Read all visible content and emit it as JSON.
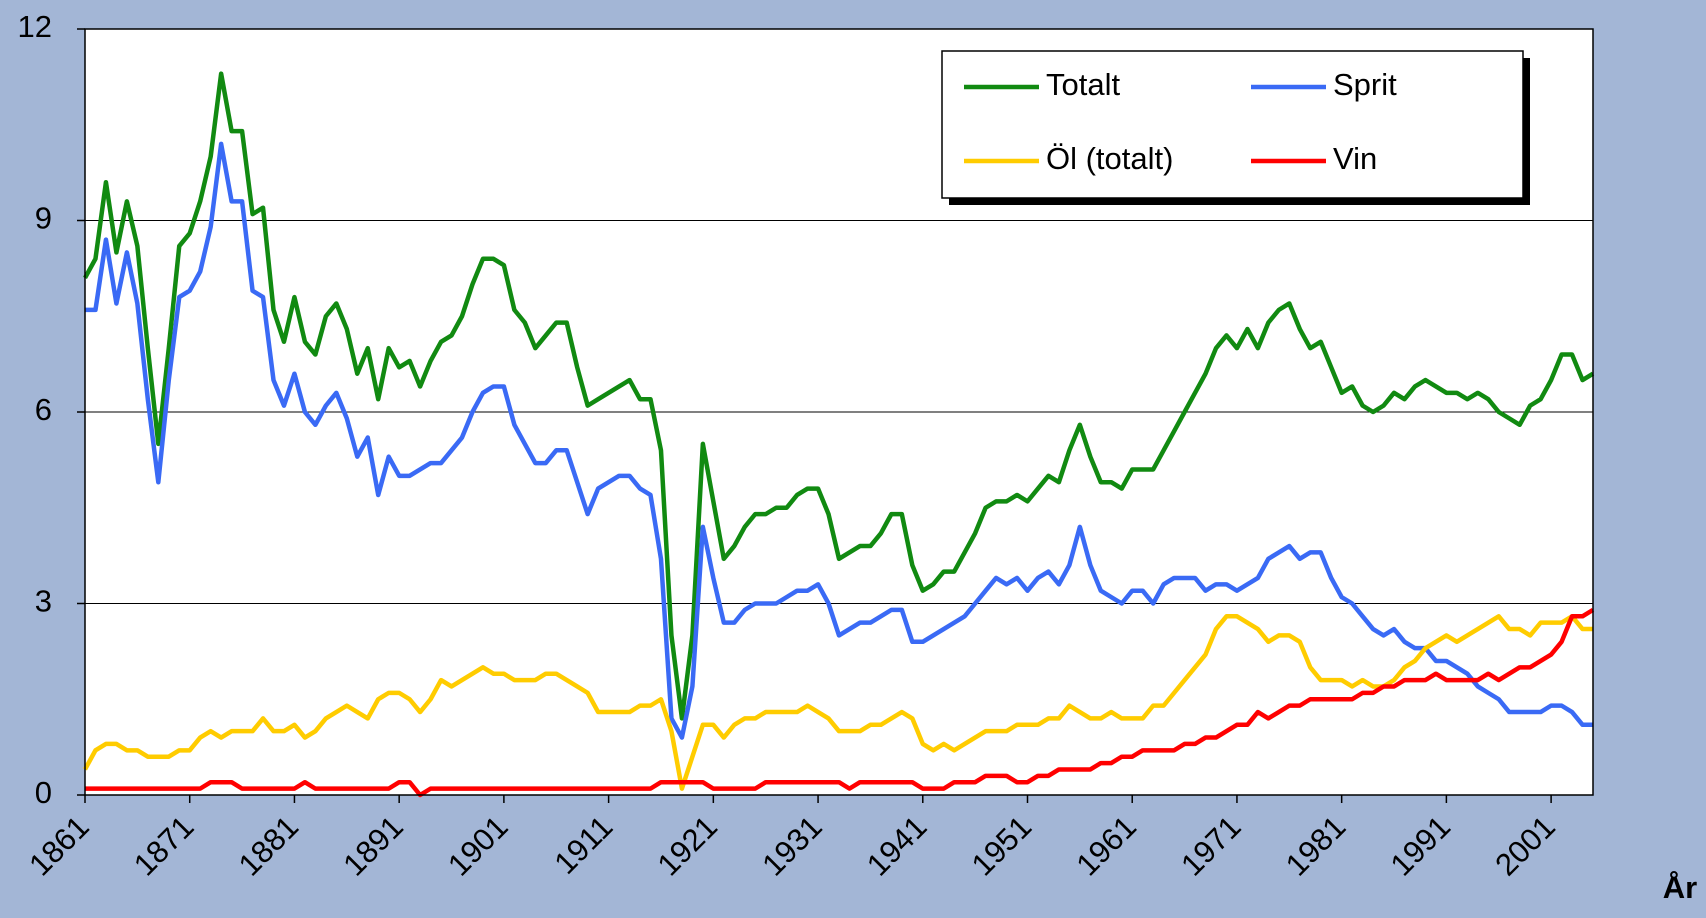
{
  "chart_data": {
    "type": "line",
    "x_label": "År",
    "x": [
      1861,
      1862,
      1863,
      1864,
      1865,
      1866,
      1867,
      1868,
      1869,
      1870,
      1871,
      1872,
      1873,
      1874,
      1875,
      1876,
      1877,
      1878,
      1879,
      1880,
      1881,
      1882,
      1883,
      1884,
      1885,
      1886,
      1887,
      1888,
      1889,
      1890,
      1891,
      1892,
      1893,
      1894,
      1895,
      1896,
      1897,
      1898,
      1899,
      1900,
      1901,
      1902,
      1903,
      1904,
      1905,
      1906,
      1907,
      1908,
      1909,
      1910,
      1911,
      1912,
      1913,
      1914,
      1915,
      1916,
      1917,
      1918,
      1919,
      1920,
      1921,
      1922,
      1923,
      1924,
      1925,
      1926,
      1927,
      1928,
      1929,
      1930,
      1931,
      1932,
      1933,
      1934,
      1935,
      1936,
      1937,
      1938,
      1939,
      1940,
      1941,
      1942,
      1943,
      1944,
      1945,
      1946,
      1947,
      1948,
      1949,
      1950,
      1951,
      1952,
      1953,
      1954,
      1955,
      1956,
      1957,
      1958,
      1959,
      1960,
      1961,
      1962,
      1963,
      1964,
      1965,
      1966,
      1967,
      1968,
      1969,
      1970,
      1971,
      1972,
      1973,
      1974,
      1975,
      1976,
      1977,
      1978,
      1979,
      1980,
      1981,
      1982,
      1983,
      1984,
      1985,
      1986,
      1987,
      1988,
      1989,
      1990,
      1991,
      1992,
      1993,
      1994,
      1995,
      1996,
      1997,
      1998,
      1999,
      2000,
      2001,
      2002,
      2003,
      2004,
      2005
    ],
    "series": [
      {
        "name": "Totalt",
        "color": "#118a11",
        "values": [
          8.1,
          8.4,
          9.6,
          8.5,
          9.3,
          8.6,
          7.0,
          5.5,
          7.0,
          8.6,
          8.8,
          9.3,
          10.0,
          11.3,
          10.4,
          10.4,
          9.1,
          9.2,
          7.6,
          7.1,
          7.8,
          7.1,
          6.9,
          7.5,
          7.7,
          7.3,
          6.6,
          7.0,
          6.2,
          7.0,
          6.7,
          6.8,
          6.4,
          6.8,
          7.1,
          7.2,
          7.5,
          8.0,
          8.4,
          8.4,
          8.3,
          7.6,
          7.4,
          7.0,
          7.2,
          7.4,
          7.4,
          6.7,
          6.1,
          6.2,
          6.3,
          6.4,
          6.5,
          6.2,
          6.2,
          5.4,
          2.5,
          1.2,
          2.5,
          5.5,
          4.6,
          3.7,
          3.9,
          4.2,
          4.4,
          4.4,
          4.5,
          4.5,
          4.7,
          4.8,
          4.8,
          4.4,
          3.7,
          3.8,
          3.9,
          3.9,
          4.1,
          4.4,
          4.4,
          3.6,
          3.2,
          3.3,
          3.5,
          3.5,
          3.8,
          4.1,
          4.5,
          4.6,
          4.6,
          4.7,
          4.6,
          4.8,
          5.0,
          4.9,
          5.4,
          5.8,
          5.3,
          4.9,
          4.9,
          4.8,
          5.1,
          5.1,
          5.1,
          5.4,
          5.7,
          6.0,
          6.3,
          6.6,
          7.0,
          7.2,
          7.0,
          7.3,
          7.0,
          7.4,
          7.6,
          7.7,
          7.3,
          7.0,
          7.1,
          6.7,
          6.3,
          6.4,
          6.1,
          6.0,
          6.1,
          6.3,
          6.2,
          6.4,
          6.5,
          6.4,
          6.3,
          6.3,
          6.2,
          6.3,
          6.2,
          6.0,
          5.9,
          5.8,
          6.1,
          6.2,
          6.5,
          6.9,
          6.9,
          6.5,
          6.6
        ]
      },
      {
        "name": "Sprit",
        "color": "#3a6af5",
        "values": [
          7.6,
          7.6,
          8.7,
          7.7,
          8.5,
          7.7,
          6.2,
          4.9,
          6.5,
          7.8,
          7.9,
          8.2,
          8.9,
          10.2,
          9.3,
          9.3,
          7.9,
          7.8,
          6.5,
          6.1,
          6.6,
          6.0,
          5.8,
          6.1,
          6.3,
          5.9,
          5.3,
          5.6,
          4.7,
          5.3,
          5.0,
          5.0,
          5.1,
          5.2,
          5.2,
          5.4,
          5.6,
          6.0,
          6.3,
          6.4,
          6.4,
          5.8,
          5.5,
          5.2,
          5.2,
          5.4,
          5.4,
          4.9,
          4.4,
          4.8,
          4.9,
          5.0,
          5.0,
          4.8,
          4.7,
          3.7,
          1.2,
          0.9,
          1.7,
          4.2,
          3.4,
          2.7,
          2.7,
          2.9,
          3.0,
          3.0,
          3.0,
          3.1,
          3.2,
          3.2,
          3.3,
          3.0,
          2.5,
          2.6,
          2.7,
          2.7,
          2.8,
          2.9,
          2.9,
          2.4,
          2.4,
          2.5,
          2.6,
          2.7,
          2.8,
          3.0,
          3.2,
          3.4,
          3.3,
          3.4,
          3.2,
          3.4,
          3.5,
          3.3,
          3.6,
          4.2,
          3.6,
          3.2,
          3.1,
          3.0,
          3.2,
          3.2,
          3.0,
          3.3,
          3.4,
          3.4,
          3.4,
          3.2,
          3.3,
          3.3,
          3.2,
          3.3,
          3.4,
          3.7,
          3.8,
          3.9,
          3.7,
          3.8,
          3.8,
          3.4,
          3.1,
          3.0,
          2.8,
          2.6,
          2.5,
          2.6,
          2.4,
          2.3,
          2.3,
          2.1,
          2.1,
          2.0,
          1.9,
          1.7,
          1.6,
          1.5,
          1.3,
          1.3,
          1.3,
          1.3,
          1.4,
          1.4,
          1.3,
          1.1,
          1.1
        ]
      },
      {
        "name": "Öl (totalt)",
        "color": "#ffcc00",
        "values": [
          0.4,
          0.7,
          0.8,
          0.8,
          0.7,
          0.7,
          0.6,
          0.6,
          0.6,
          0.7,
          0.7,
          0.9,
          1.0,
          0.9,
          1.0,
          1.0,
          1.0,
          1.2,
          1.0,
          1.0,
          1.1,
          0.9,
          1.0,
          1.2,
          1.3,
          1.4,
          1.3,
          1.2,
          1.5,
          1.6,
          1.6,
          1.5,
          1.3,
          1.5,
          1.8,
          1.7,
          1.8,
          1.9,
          2.0,
          1.9,
          1.9,
          1.8,
          1.8,
          1.8,
          1.9,
          1.9,
          1.8,
          1.7,
          1.6,
          1.3,
          1.3,
          1.3,
          1.3,
          1.4,
          1.4,
          1.5,
          1.0,
          0.1,
          0.6,
          1.1,
          1.1,
          0.9,
          1.1,
          1.2,
          1.2,
          1.3,
          1.3,
          1.3,
          1.3,
          1.4,
          1.3,
          1.2,
          1.0,
          1.0,
          1.0,
          1.1,
          1.1,
          1.2,
          1.3,
          1.2,
          0.8,
          0.7,
          0.8,
          0.7,
          0.8,
          0.9,
          1.0,
          1.0,
          1.0,
          1.1,
          1.1,
          1.1,
          1.2,
          1.2,
          1.4,
          1.3,
          1.2,
          1.2,
          1.3,
          1.2,
          1.2,
          1.2,
          1.4,
          1.4,
          1.6,
          1.8,
          2.0,
          2.2,
          2.6,
          2.8,
          2.8,
          2.7,
          2.6,
          2.4,
          2.5,
          2.5,
          2.4,
          2.0,
          1.8,
          1.8,
          1.8,
          1.7,
          1.8,
          1.7,
          1.7,
          1.8,
          2.0,
          2.1,
          2.3,
          2.4,
          2.5,
          2.4,
          2.5,
          2.6,
          2.7,
          2.8,
          2.6,
          2.6,
          2.5,
          2.7,
          2.7,
          2.7,
          2.8,
          2.6,
          2.6
        ]
      },
      {
        "name": "Vin",
        "color": "#ff0000",
        "values": [
          0.1,
          0.1,
          0.1,
          0.1,
          0.1,
          0.1,
          0.1,
          0.1,
          0.1,
          0.1,
          0.1,
          0.1,
          0.2,
          0.2,
          0.2,
          0.1,
          0.1,
          0.1,
          0.1,
          0.1,
          0.1,
          0.2,
          0.1,
          0.1,
          0.1,
          0.1,
          0.1,
          0.1,
          0.1,
          0.1,
          0.2,
          0.2,
          0.0,
          0.1,
          0.1,
          0.1,
          0.1,
          0.1,
          0.1,
          0.1,
          0.1,
          0.1,
          0.1,
          0.1,
          0.1,
          0.1,
          0.1,
          0.1,
          0.1,
          0.1,
          0.1,
          0.1,
          0.1,
          0.1,
          0.1,
          0.2,
          0.2,
          0.2,
          0.2,
          0.2,
          0.1,
          0.1,
          0.1,
          0.1,
          0.1,
          0.2,
          0.2,
          0.2,
          0.2,
          0.2,
          0.2,
          0.2,
          0.2,
          0.1,
          0.2,
          0.2,
          0.2,
          0.2,
          0.2,
          0.2,
          0.1,
          0.1,
          0.1,
          0.2,
          0.2,
          0.2,
          0.3,
          0.3,
          0.3,
          0.2,
          0.2,
          0.3,
          0.3,
          0.4,
          0.4,
          0.4,
          0.4,
          0.5,
          0.5,
          0.6,
          0.6,
          0.7,
          0.7,
          0.7,
          0.7,
          0.8,
          0.8,
          0.9,
          0.9,
          1.0,
          1.1,
          1.1,
          1.3,
          1.2,
          1.3,
          1.4,
          1.4,
          1.5,
          1.5,
          1.5,
          1.5,
          1.5,
          1.6,
          1.6,
          1.7,
          1.7,
          1.8,
          1.8,
          1.8,
          1.9,
          1.8,
          1.8,
          1.8,
          1.8,
          1.9,
          1.8,
          1.9,
          2.0,
          2.0,
          2.1,
          2.2,
          2.4,
          2.8,
          2.8,
          2.9
        ]
      }
    ],
    "xlim": [
      1861,
      2005
    ],
    "xticks": [
      1861,
      1871,
      1881,
      1891,
      1901,
      1911,
      1921,
      1931,
      1941,
      1951,
      1961,
      1971,
      1981,
      1991,
      2001
    ],
    "ylim": [
      0,
      12
    ],
    "yticks": [
      0,
      3,
      6,
      9,
      12
    ],
    "grid": true,
    "legend": "upper right"
  }
}
